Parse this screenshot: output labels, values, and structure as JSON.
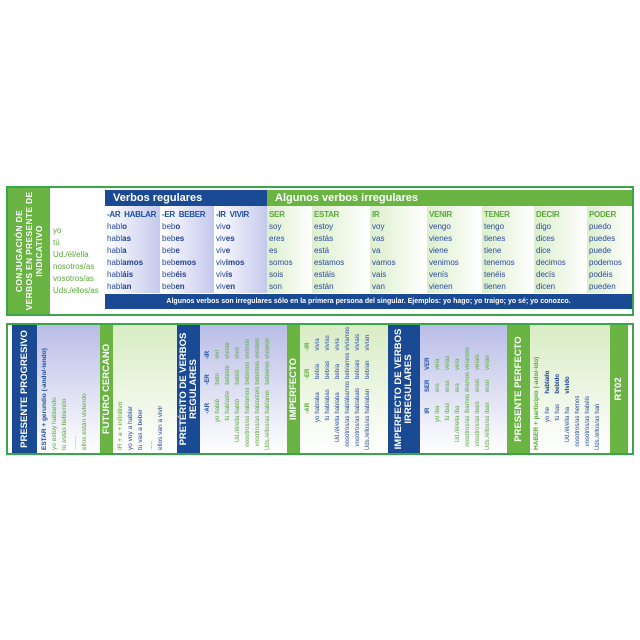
{
  "top": {
    "side_title": "CONJUGACIÓN DE VERBOS EN PRESENTE DE INDICATIVO",
    "pronouns": [
      "yo",
      "tú",
      "Ud./él/ella",
      "nosotros/as",
      "vosotros/as",
      "Uds./ellos/as"
    ],
    "regular_header": "Verbos regulares",
    "irregular_header": "Algunos verbos irregulares",
    "regular": [
      {
        "head": "-AR  HABLAR",
        "forms": [
          [
            "habl",
            "o"
          ],
          [
            "habl",
            "as"
          ],
          [
            "habl",
            "a"
          ],
          [
            "habl",
            "amos"
          ],
          [
            "habl",
            "áis"
          ],
          [
            "habl",
            "an"
          ]
        ]
      },
      {
        "head": "-ER  BEBER",
        "forms": [
          [
            "beb",
            "o"
          ],
          [
            "beb",
            "es"
          ],
          [
            "beb",
            "e"
          ],
          [
            "beb",
            "emos"
          ],
          [
            "beb",
            "éis"
          ],
          [
            "beb",
            "en"
          ]
        ]
      },
      {
        "head": "-IR  VIVIR",
        "forms": [
          [
            "viv",
            "o"
          ],
          [
            "viv",
            "es"
          ],
          [
            "viv",
            "e"
          ],
          [
            "viv",
            "imos"
          ],
          [
            "viv",
            "ís"
          ],
          [
            "viv",
            "en"
          ]
        ]
      }
    ],
    "irregular": [
      {
        "head": "SER",
        "forms": [
          "soy",
          "eres",
          "es",
          "somos",
          "sois",
          "son"
        ]
      },
      {
        "head": "ESTAR",
        "forms": [
          "estoy",
          "estás",
          "está",
          "estamos",
          "estáis",
          "están"
        ]
      },
      {
        "head": "IR",
        "forms": [
          "voy",
          "vas",
          "va",
          "vamos",
          "vais",
          "van"
        ]
      },
      {
        "head": "VENIR",
        "forms": [
          "vengo",
          "vienes",
          "viene",
          "venimos",
          "venís",
          "vienen"
        ]
      },
      {
        "head": "TENER",
        "forms": [
          "tengo",
          "tienes",
          "tiene",
          "tenemos",
          "tenéis",
          "tienen"
        ]
      },
      {
        "head": "DECIR",
        "forms": [
          "digo",
          "dices",
          "dice",
          "decimos",
          "decís",
          "dicen"
        ]
      },
      {
        "head": "PODER",
        "forms": [
          "puedo",
          "puedes",
          "puede",
          "podemos",
          "podéis",
          "pueden"
        ]
      }
    ],
    "footer": "Algunos verbos son irregulares sólo en la primera persona del singular. Ejemplos: yo hago; yo traigo; yo sé; yo conozco."
  },
  "bottom": {
    "progresivo": {
      "title": "PRESENTE PROGRESIVO",
      "formula": "ESTAR + gerundio (-ando/-iendo)",
      "lines": [
        "yo estoy hablando",
        "tú estás bebiendo",
        "........",
        "ellos están viviendo"
      ]
    },
    "futuro": {
      "title": "FUTURO CERCANO",
      "formula": "IR + a + infinitivo",
      "lines": [
        "yo voy a hablar",
        "tú vas a beber",
        ".....",
        "ellos van a vivir"
      ]
    },
    "preterito": {
      "title": "PRETÉRITO DE VERBOS REGULARES",
      "cols": [
        "-AR",
        "-ER",
        "-IR"
      ],
      "rows": [
        [
          "yo",
          "hablé",
          "bebí",
          "viví"
        ],
        [
          "tú",
          "hablaste",
          "bebiste",
          "viviste"
        ],
        [
          "Ud./él/ella",
          "habló",
          "bebió",
          "vivió"
        ],
        [
          "nosotros/as",
          "hablamos",
          "bebimos",
          "vivimos"
        ],
        [
          "vosotros/as",
          "hablasteis",
          "bebisteis",
          "vivisteis"
        ],
        [
          "Uds./ellos/as",
          "hablaron",
          "bebieron",
          "vivieron"
        ]
      ]
    },
    "imperfecto": {
      "title": "IMPERFECTO",
      "cols": [
        "-AR",
        "-ER",
        "-IR"
      ],
      "rows": [
        [
          "yo",
          "hablaba",
          "bebía",
          "vivía"
        ],
        [
          "tú",
          "hablabas",
          "bebías",
          "vivías"
        ],
        [
          "Ud./él/ella",
          "hablaba",
          "bebía",
          "vivía"
        ],
        [
          "nosotros/as",
          "hablábamos",
          "bebíamos",
          "vivíamos"
        ],
        [
          "vosotros/as",
          "hablabais",
          "bebíais",
          "vivíais"
        ],
        [
          "Uds./ellos/as",
          "hablaban",
          "bebían",
          "vivían"
        ]
      ]
    },
    "imperfecto_irr": {
      "title": "IMPERFECTO DE VERBOS IRREGULARES",
      "cols": [
        "IR",
        "SER",
        "VER"
      ],
      "rows": [
        [
          "yo",
          "iba",
          "era",
          "veía"
        ],
        [
          "tú",
          "ibas",
          "eras",
          "veías"
        ],
        [
          "Ud./él/ella",
          "iba",
          "era",
          "veía"
        ],
        [
          "nosotros/as",
          "íbamos",
          "éramos",
          "veíamos"
        ],
        [
          "vosotros/as",
          "ibais",
          "erais",
          "veíais"
        ],
        [
          "Uds./ellos/as",
          "iban",
          "eran",
          "veían"
        ]
      ]
    },
    "perfecto": {
      "title": "PRESENTE PERFECTO",
      "formula": "HABER + participio (-ado/-ido)",
      "rows": [
        [
          "yo",
          "he",
          "hablado"
        ],
        [
          "tú",
          "has",
          "bebido"
        ],
        [
          "Ud./él/ella",
          "ha",
          "vivido"
        ],
        [
          "nosotros/as",
          "hemos",
          ""
        ],
        [
          "vosotros/as",
          "habéis",
          ""
        ],
        [
          "Uds./ellos/as",
          "han",
          ""
        ]
      ]
    },
    "code": "RT02"
  }
}
